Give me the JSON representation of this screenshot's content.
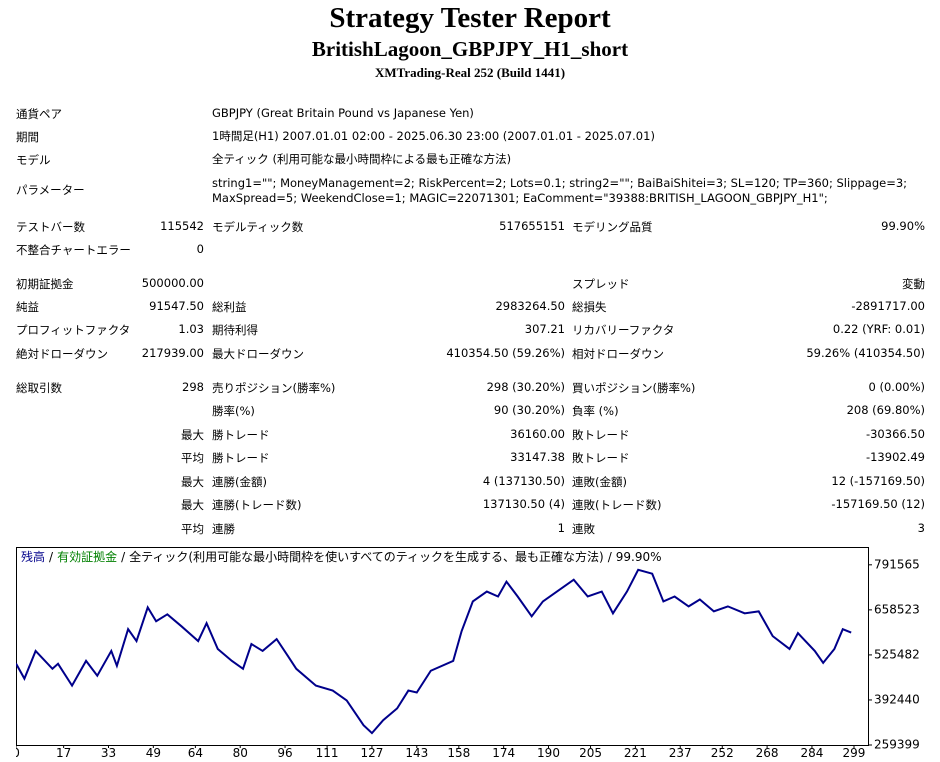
{
  "header": {
    "title": "Strategy Tester Report",
    "subtitle": "BritishLagoon_GBPJPY_H1_short",
    "build": "XMTrading-Real 252 (Build 1441)"
  },
  "info": [
    [
      "通貨ペア",
      "GBPJPY (Great Britain Pound vs Japanese Yen)"
    ],
    [
      "期間",
      "1時間足(H1) 2007.01.01 02:00 - 2025.06.30 23:00 (2007.01.01 - 2025.07.01)"
    ],
    [
      "モデル",
      "全ティック (利用可能な最小時間枠による最も正確な方法)"
    ],
    [
      "パラメーター",
      "string1=\"\"; MoneyManagement=2; RiskPercent=2; Lots=0.1; string2=\"\"; BaiBaiShitei=3; SL=120; TP=360; Slippage=3; MaxSpread=5; WeekendClose=1; MAGIC=22071301; EaComment=\"39388:BRITISH_LAGOON_GBPJPY_H1\";"
    ]
  ],
  "stats": [
    [
      "テストバー数",
      "115542",
      "モデルティック数",
      "517655151",
      "モデリング品質",
      "99.90%"
    ],
    [
      "不整合チャートエラー",
      "0",
      null,
      null,
      null,
      null
    ],
    [
      "初期証拠金",
      "500000.00",
      null,
      null,
      "スプレッド",
      "変動"
    ],
    [
      "純益",
      "91547.50",
      "総利益",
      "2983264.50",
      "総損失",
      "-2891717.00"
    ],
    [
      "プロフィットファクタ",
      "1.03",
      "期待利得",
      "307.21",
      "リカバリーファクタ",
      "0.22 (YRF: 0.01)"
    ],
    [
      "絶対ドローダウン",
      "217939.00",
      "最大ドローダウン",
      "410354.50 (59.26%)",
      "相対ドローダウン",
      "59.26% (410354.50)"
    ],
    [
      "総取引数",
      "298",
      "売りポジション(勝率%)",
      "298 (30.20%)",
      "買いポジション(勝率%)",
      "0 (0.00%)"
    ],
    [
      null,
      null,
      "勝率(%)",
      "90 (30.20%)",
      "負率 (%)",
      "208 (69.80%)"
    ],
    [
      null,
      "最大",
      "勝トレード",
      "36160.00",
      "敗トレード",
      "-30366.50"
    ],
    [
      null,
      "平均",
      "勝トレード",
      "33147.38",
      "敗トレード",
      "-13902.49"
    ],
    [
      null,
      "最大",
      "連勝(金額)",
      "4 (137130.50)",
      "連敗(金額)",
      "12 (-157169.50)"
    ],
    [
      null,
      "最大",
      "連勝(トレード数)",
      "137130.50 (4)",
      "連敗(トレード数)",
      "-157169.50 (12)"
    ],
    [
      null,
      "平均",
      "連勝",
      "1",
      "連敗",
      "3"
    ]
  ],
  "chart_data": {
    "type": "line",
    "legend_separator": "/",
    "equity_label": {
      "text": "有効証拠金",
      "color": "#008000"
    },
    "model_note": "全ティック(利用可能な最小時間枠を使いすべてのティックを生成する、最も正確な方法)",
    "quality": "99.90%",
    "x": [
      0,
      3,
      7,
      13,
      15,
      20,
      25,
      29,
      34,
      36,
      40,
      43,
      47,
      50,
      54,
      59,
      65,
      68,
      72,
      77,
      81,
      84,
      88,
      93,
      97,
      100,
      107,
      113,
      118,
      124,
      127,
      131,
      136,
      140,
      143,
      148,
      156,
      159,
      163,
      168,
      172,
      175,
      179,
      184,
      188,
      193,
      199,
      204,
      209,
      213,
      218,
      222,
      227,
      231,
      235,
      240,
      244,
      249,
      254,
      260,
      265,
      270,
      276,
      279,
      285,
      288,
      292,
      295,
      298
    ],
    "series": [
      {
        "name": "残高",
        "color": "#00008b",
        "values": [
          500000,
          455300,
          537200,
          484500,
          499200,
          434800,
          507900,
          464100,
          537200,
          493300,
          601500,
          566400,
          665800,
          624900,
          645400,
          610300,
          566400,
          619100,
          543000,
          507900,
          484500,
          557600,
          537200,
          572300,
          522600,
          484500,
          434800,
          420200,
          391000,
          317900,
          294500,
          332500,
          367600,
          420200,
          414400,
          478700,
          507900,
          595700,
          683400,
          712600,
          698000,
          741900,
          698000,
          639500,
          683400,
          712600,
          747700,
          698000,
          712600,
          648300,
          712600,
          776900,
          765300,
          683400,
          698000,
          668800,
          689200,
          654100,
          668800,
          648300,
          654100,
          581000,
          543000,
          589800,
          537200,
          502100,
          543000,
          601500,
          591548
        ]
      }
    ],
    "xlim": [
      0,
      304
    ],
    "xticks": [
      0,
      17,
      33,
      49,
      64,
      80,
      96,
      111,
      127,
      143,
      158,
      174,
      190,
      205,
      221,
      237,
      252,
      268,
      284,
      299
    ],
    "ylim": [
      259399,
      844200
    ],
    "yticks": [
      259399,
      392440,
      525482,
      658523,
      791565
    ]
  }
}
